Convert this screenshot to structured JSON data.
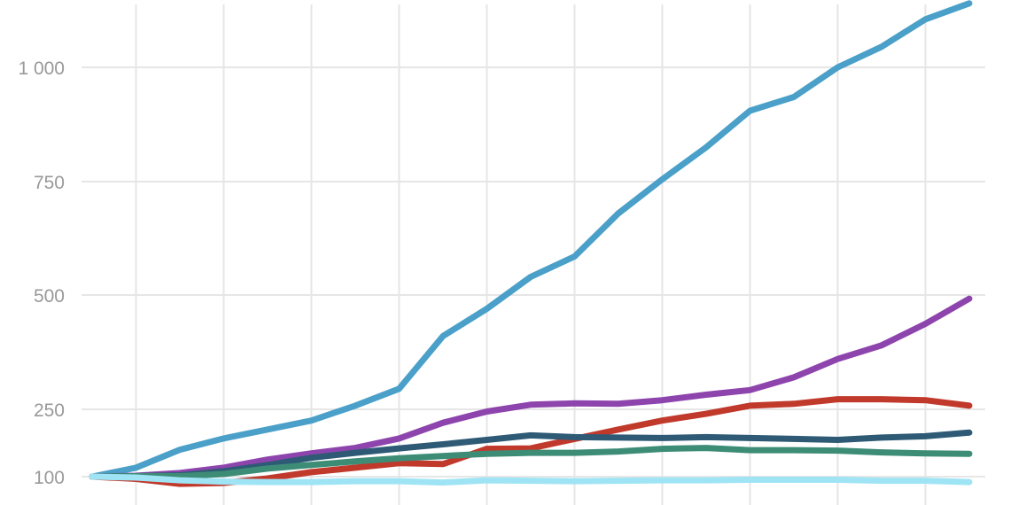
{
  "chart_data": {
    "type": "line",
    "title": "",
    "xlabel": "",
    "ylabel": "",
    "ylim": [
      80,
      1150
    ],
    "xlim": [
      0,
      20
    ],
    "y_ticks": [
      100,
      250,
      500,
      750,
      1000
    ],
    "y_tick_labels": [
      "100",
      "250",
      "500",
      "750",
      "1 000"
    ],
    "x_grid": [
      1,
      3,
      5,
      7,
      9,
      11,
      13,
      15,
      17,
      19
    ],
    "grid": true,
    "x": [
      0,
      1,
      2,
      3,
      4,
      5,
      6,
      7,
      8,
      9,
      10,
      11,
      12,
      13,
      14,
      15,
      16,
      17,
      18,
      19,
      20
    ],
    "series": [
      {
        "color": "#4aa0c8",
        "values": [
          100,
          120,
          160,
          185,
          205,
          225,
          258,
          295,
          410,
          470,
          540,
          585,
          680,
          755,
          825,
          905,
          935,
          1000,
          1045,
          1105,
          1140
        ]
      },
      {
        "color": "#8e44ad",
        "values": [
          100,
          102,
          108,
          120,
          138,
          152,
          164,
          185,
          220,
          245,
          260,
          263,
          262,
          270,
          282,
          292,
          320,
          360,
          390,
          437,
          492
        ]
      },
      {
        "color": "#c0392b",
        "values": [
          100,
          95,
          84,
          86,
          96,
          110,
          120,
          130,
          128,
          162,
          163,
          184,
          205,
          225,
          240,
          258,
          262,
          272,
          272,
          270,
          258
        ]
      },
      {
        "color": "#2e5a75",
        "values": [
          100,
          101,
          103,
          112,
          126,
          142,
          153,
          163,
          172,
          182,
          192,
          188,
          187,
          186,
          188,
          186,
          184,
          182,
          187,
          190,
          198
        ]
      },
      {
        "color": "#3d8c76",
        "values": [
          100,
          101,
          101,
          106,
          118,
          126,
          134,
          141,
          146,
          151,
          153,
          153,
          156,
          162,
          164,
          159,
          159,
          158,
          154,
          152,
          151
        ]
      },
      {
        "color": "#9fe4f5",
        "values": [
          100,
          98,
          92,
          89,
          88,
          88,
          90,
          90,
          87,
          92,
          91,
          90,
          91,
          92,
          92,
          93,
          93,
          93,
          91,
          91,
          88
        ]
      }
    ]
  }
}
